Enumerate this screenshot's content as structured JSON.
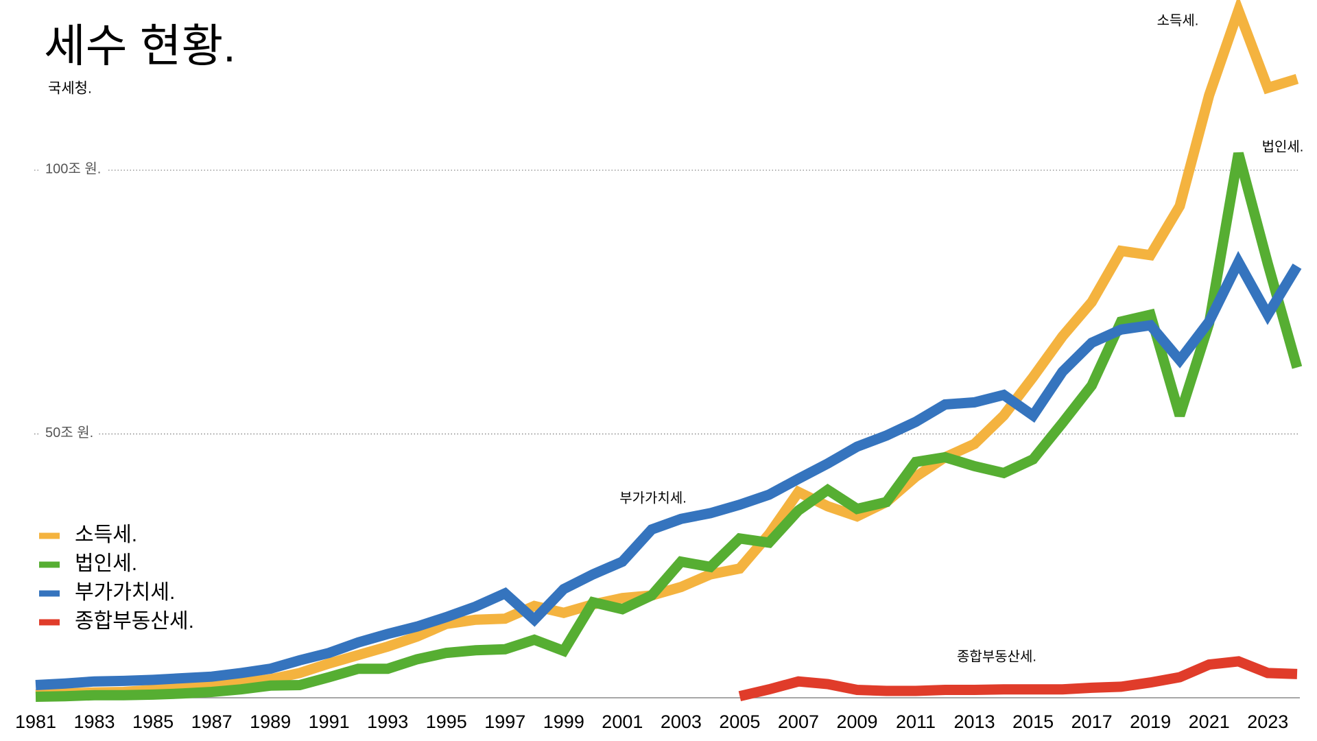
{
  "chart_data": {
    "type": "line",
    "title": "세수 현황.",
    "subtitle": "국세청.",
    "x": [
      1981,
      1982,
      1983,
      1984,
      1985,
      1986,
      1987,
      1988,
      1989,
      1990,
      1991,
      1992,
      1993,
      1994,
      1995,
      1996,
      1997,
      1998,
      1999,
      2000,
      2001,
      2002,
      2003,
      2004,
      2005,
      2006,
      2007,
      2008,
      2009,
      2010,
      2011,
      2012,
      2013,
      2014,
      2015,
      2016,
      2017,
      2018,
      2019,
      2020,
      2021,
      2022,
      2023,
      2024
    ],
    "xlim": [
      1981,
      2024
    ],
    "xticks": [
      1981,
      1983,
      1985,
      1987,
      1989,
      1991,
      1993,
      1995,
      1997,
      1999,
      2001,
      2003,
      2005,
      2007,
      2009,
      2011,
      2013,
      2015,
      2017,
      2019,
      2021,
      2023
    ],
    "ylim": [
      0,
      132
    ],
    "yticks": [
      {
        "value": 50,
        "label": "50조 원."
      },
      {
        "value": 100,
        "label": "100조 원."
      }
    ],
    "grid": true,
    "legend": "left",
    "series": [
      {
        "name": "소득세.",
        "color": "#f4b33f",
        "values": [
          0.6,
          0.8,
          1.0,
          1.1,
          1.5,
          1.8,
          2.3,
          2.9,
          3.5,
          4.7,
          6.5,
          8.1,
          9.7,
          11.6,
          14.0,
          14.8,
          15.0,
          17.4,
          16.1,
          17.7,
          18.9,
          19.4,
          21.0,
          23.4,
          24.5,
          31.0,
          39.0,
          36.3,
          34.4,
          37.1,
          41.9,
          45.6,
          48.1,
          53.5,
          60.8,
          68.5,
          75.0,
          84.7,
          83.9,
          93.2,
          114.2,
          130.3,
          115.6,
          117.3
        ]
      },
      {
        "name": "법인세.",
        "color": "#56ae32",
        "values": [
          0.2,
          0.3,
          0.5,
          0.5,
          0.6,
          0.8,
          1.1,
          1.6,
          2.3,
          2.4,
          3.9,
          5.5,
          5.5,
          7.3,
          8.5,
          9.0,
          9.2,
          11.0,
          8.9,
          18.1,
          16.8,
          19.4,
          25.8,
          24.8,
          30.2,
          29.4,
          35.5,
          39.4,
          35.8,
          37.1,
          44.7,
          45.6,
          43.9,
          42.6,
          45.2,
          52.1,
          59.2,
          71.3,
          72.6,
          53.5,
          71.0,
          103.2,
          82.3,
          62.6
        ]
      },
      {
        "name": "부가가치세.",
        "color": "#3574be",
        "values": [
          2.4,
          2.7,
          3.1,
          3.2,
          3.4,
          3.7,
          4.0,
          4.7,
          5.5,
          7.1,
          8.5,
          10.5,
          12.1,
          13.5,
          15.3,
          17.3,
          19.8,
          14.8,
          20.6,
          23.4,
          25.8,
          31.9,
          33.9,
          35.0,
          36.6,
          38.5,
          41.5,
          44.4,
          47.6,
          49.7,
          52.3,
          55.6,
          56.0,
          57.4,
          53.5,
          61.8,
          67.3,
          69.8,
          70.6,
          64.0,
          71.3,
          82.6,
          72.6,
          81.8
        ]
      },
      {
        "name": "종합부동산세.",
        "color": "#e03c2a",
        "values": [
          null,
          null,
          null,
          null,
          null,
          null,
          null,
          null,
          null,
          null,
          null,
          null,
          null,
          null,
          null,
          null,
          null,
          null,
          null,
          null,
          null,
          null,
          null,
          null,
          0.3,
          1.6,
          3.1,
          2.6,
          1.5,
          1.3,
          1.3,
          1.5,
          1.5,
          1.6,
          1.6,
          1.6,
          1.9,
          2.1,
          2.9,
          3.9,
          6.3,
          6.9,
          4.7,
          4.5
        ]
      }
    ],
    "annotations": [
      "소득세.",
      "법인세.",
      "부가가치세.",
      "종합부동산세."
    ]
  }
}
